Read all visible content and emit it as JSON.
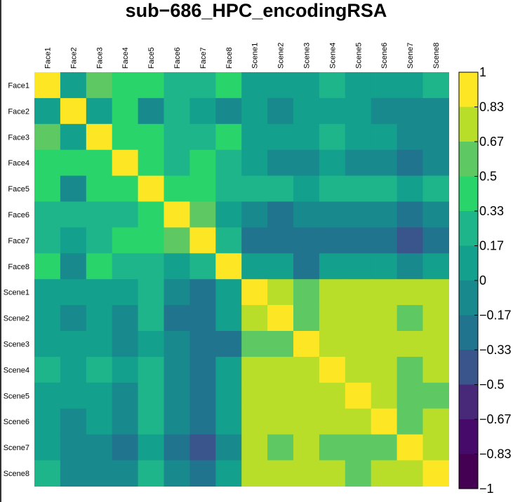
{
  "chart_data": {
    "type": "heatmap",
    "title": "sub−686_HPC_encodingRSA",
    "rows": [
      "Face1",
      "Face2",
      "Face3",
      "Face4",
      "Face5",
      "Face6",
      "Face7",
      "Face8",
      "Scene1",
      "Scene2",
      "Scene3",
      "Scene4",
      "Scene5",
      "Scene6",
      "Scene7",
      "Scene8"
    ],
    "columns": [
      "Face1",
      "Face2",
      "Face3",
      "Face4",
      "Face5",
      "Face6",
      "Face7",
      "Face8",
      "Scene1",
      "Scene2",
      "Scene3",
      "Scene4",
      "Scene5",
      "Scene6",
      "Scene7",
      "Scene8"
    ],
    "values": [
      [
        1,
        0.1,
        0.58,
        0.42,
        0.42,
        0.25,
        0.25,
        0.42,
        0.1,
        0.1,
        0.1,
        0.25,
        0.1,
        0.1,
        0.1,
        0.25
      ],
      [
        0.1,
        1,
        0.1,
        0.42,
        -0.1,
        0.25,
        0.1,
        -0.1,
        0.1,
        -0.1,
        0.1,
        0.1,
        0.1,
        -0.1,
        -0.1,
        -0.1
      ],
      [
        0.58,
        0.1,
        1,
        0.42,
        0.42,
        0.25,
        0.25,
        0.42,
        0.1,
        0.1,
        0.1,
        0.25,
        0.1,
        0.1,
        -0.1,
        -0.1
      ],
      [
        0.42,
        0.42,
        0.42,
        1,
        0.42,
        0.25,
        0.42,
        0.25,
        0.1,
        -0.1,
        -0.1,
        0.1,
        -0.1,
        -0.1,
        -0.25,
        -0.1
      ],
      [
        0.42,
        -0.1,
        0.42,
        0.42,
        1,
        0.42,
        0.42,
        0.25,
        0.25,
        0.25,
        0.1,
        0.25,
        0.25,
        0.25,
        0.1,
        0.25
      ],
      [
        0.25,
        0.25,
        0.25,
        0.25,
        0.42,
        1,
        0.58,
        0.1,
        -0.1,
        -0.25,
        -0.1,
        -0.1,
        -0.1,
        -0.1,
        -0.25,
        -0.1
      ],
      [
        0.25,
        0.1,
        0.25,
        0.42,
        0.42,
        0.58,
        1,
        0.25,
        -0.25,
        -0.25,
        -0.25,
        -0.25,
        -0.25,
        -0.25,
        -0.42,
        -0.25
      ],
      [
        0.42,
        -0.1,
        0.42,
        0.25,
        0.25,
        0.1,
        0.25,
        1,
        0.1,
        0.1,
        -0.25,
        0.1,
        0.1,
        0.1,
        -0.1,
        0.1
      ],
      [
        0.1,
        0.1,
        0.1,
        0.1,
        0.25,
        -0.1,
        -0.25,
        0.1,
        1,
        0.75,
        0.58,
        0.75,
        0.75,
        0.75,
        0.75,
        0.75
      ],
      [
        0.1,
        -0.1,
        0.1,
        -0.1,
        0.25,
        -0.25,
        -0.25,
        0.1,
        0.75,
        1,
        0.58,
        0.75,
        0.75,
        0.75,
        0.58,
        0.75
      ],
      [
        0.1,
        0.1,
        0.1,
        -0.1,
        0.1,
        -0.1,
        -0.25,
        -0.25,
        0.58,
        0.58,
        1,
        0.75,
        0.75,
        0.75,
        0.75,
        0.75
      ],
      [
        0.25,
        0.1,
        0.25,
        0.1,
        0.25,
        -0.1,
        -0.25,
        0.1,
        0.75,
        0.75,
        0.75,
        1,
        0.75,
        0.75,
        0.58,
        0.75
      ],
      [
        0.1,
        0.1,
        0.1,
        -0.1,
        0.25,
        -0.1,
        -0.25,
        0.1,
        0.75,
        0.75,
        0.75,
        0.75,
        1,
        0.75,
        0.58,
        0.58
      ],
      [
        0.1,
        -0.1,
        0.1,
        -0.1,
        0.25,
        -0.1,
        -0.25,
        0.1,
        0.75,
        0.75,
        0.75,
        0.75,
        0.75,
        1,
        0.58,
        0.75
      ],
      [
        0.1,
        -0.1,
        -0.1,
        -0.25,
        0.1,
        -0.25,
        -0.42,
        -0.1,
        0.75,
        0.58,
        0.75,
        0.58,
        0.58,
        0.58,
        1,
        0.75
      ],
      [
        0.25,
        -0.1,
        -0.1,
        -0.1,
        0.25,
        -0.1,
        -0.25,
        0.1,
        0.75,
        0.75,
        0.75,
        0.75,
        0.58,
        0.75,
        0.75,
        1
      ]
    ],
    "color_scale": {
      "range": [
        -1,
        1
      ],
      "tick_labels": [
        "1",
        "0.83",
        "0.67",
        "0.5",
        "0.33",
        "0.17",
        "0",
        "−0.17",
        "−0.33",
        "−0.5",
        "−0.67",
        "−0.83",
        "−1"
      ],
      "bins": [
        {
          "min": 0.83,
          "max": 1.0,
          "color": "#FDE725"
        },
        {
          "min": 0.67,
          "max": 0.83,
          "color": "#B8DE29"
        },
        {
          "min": 0.5,
          "max": 0.67,
          "color": "#5EC962"
        },
        {
          "min": 0.33,
          "max": 0.5,
          "color": "#29D46B"
        },
        {
          "min": 0.17,
          "max": 0.33,
          "color": "#1FB58A"
        },
        {
          "min": 0.0,
          "max": 0.17,
          "color": "#13A08D"
        },
        {
          "min": -0.17,
          "max": 0.0,
          "color": "#188A8D"
        },
        {
          "min": -0.33,
          "max": -0.17,
          "color": "#21748E"
        },
        {
          "min": -0.5,
          "max": -0.33,
          "color": "#3A548C"
        },
        {
          "min": -0.67,
          "max": -0.5,
          "color": "#482878"
        },
        {
          "min": -0.83,
          "max": -0.67,
          "color": "#460B6A"
        },
        {
          "min": -1.0,
          "max": -0.83,
          "color": "#440154"
        }
      ]
    },
    "legend_position": "right"
  }
}
